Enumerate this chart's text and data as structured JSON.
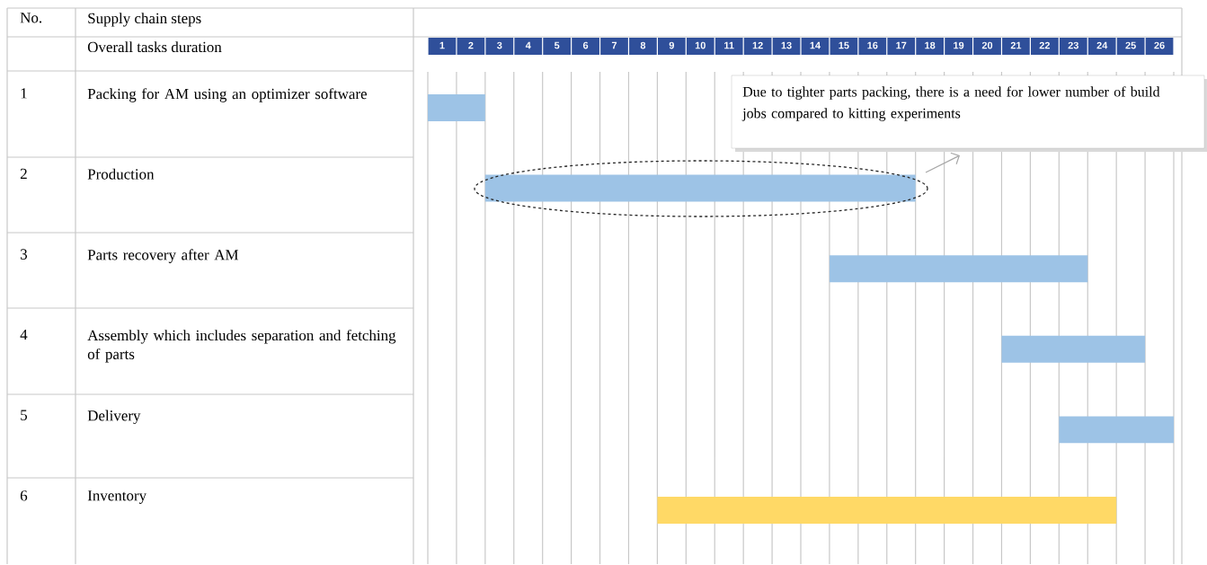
{
  "chart_data": {
    "type": "bar",
    "orientation": "horizontal",
    "categories": [
      "Packing for AM using an optimizer software",
      "Production",
      "Parts recovery after AM",
      "Assembly which includes separation and fetching of parts",
      "Delivery",
      "Inventory"
    ],
    "base": [
      0,
      2,
      14,
      20,
      22,
      8
    ],
    "values": [
      2,
      15,
      9,
      5,
      4,
      16
    ],
    "colors": [
      "#9dc3e6",
      "#9dc3e6",
      "#9dc3e6",
      "#9dc3e6",
      "#9dc3e6",
      "#ffd966"
    ],
    "xlim": [
      0,
      26
    ],
    "xticks": [
      {
        "value": 0,
        "label": null
      },
      {
        "value": 0.5,
        "label": "1"
      },
      {
        "value": 1,
        "label": null
      },
      {
        "value": 1.5,
        "label": "2"
      },
      {
        "value": 2,
        "label": null
      },
      {
        "value": 2.5,
        "label": "3"
      },
      {
        "value": 3,
        "label": null
      },
      {
        "value": 3.5,
        "label": "4"
      },
      {
        "value": 4,
        "label": null
      },
      {
        "value": 4.5,
        "label": "5"
      },
      {
        "value": 5,
        "label": null
      },
      {
        "value": 5.5,
        "label": "6"
      },
      {
        "value": 6,
        "label": null
      },
      {
        "value": 6.5,
        "label": "7"
      },
      {
        "value": 7,
        "label": null
      },
      {
        "value": 7.5,
        "label": "8"
      },
      {
        "value": 8,
        "label": null
      },
      {
        "value": 8.5,
        "label": "9"
      },
      {
        "value": 9,
        "label": null
      },
      {
        "value": 9.5,
        "label": "10"
      },
      {
        "value": 10,
        "label": null
      },
      {
        "value": 10.5,
        "label": "11"
      },
      {
        "value": 11,
        "label": null
      },
      {
        "value": 11.5,
        "label": "12"
      },
      {
        "value": 12,
        "label": null
      },
      {
        "value": 12.5,
        "label": "13"
      },
      {
        "value": 13,
        "label": null
      },
      {
        "value": 13.5,
        "label": "14"
      },
      {
        "value": 14,
        "label": null
      },
      {
        "value": 14.5,
        "label": "15"
      },
      {
        "value": 15,
        "label": null
      },
      {
        "value": 15.5,
        "label": "16"
      },
      {
        "value": 16,
        "label": null
      },
      {
        "value": 16.5,
        "label": "17"
      },
      {
        "value": 17,
        "label": null
      },
      {
        "value": 17.5,
        "label": "18"
      },
      {
        "value": 18,
        "label": null
      },
      {
        "value": 18.5,
        "label": "19"
      },
      {
        "value": 19,
        "label": null
      },
      {
        "value": 19.5,
        "label": "20"
      },
      {
        "value": 20,
        "label": null
      },
      {
        "value": 20.5,
        "label": "21"
      },
      {
        "value": 21,
        "label": null
      },
      {
        "value": 21.5,
        "label": "22"
      },
      {
        "value": 22,
        "label": null
      },
      {
        "value": 22.5,
        "label": "23"
      },
      {
        "value": 23,
        "label": null
      },
      {
        "value": 23.5,
        "label": "24"
      },
      {
        "value": 24,
        "label": null
      },
      {
        "value": 24.5,
        "label": "25"
      },
      {
        "value": 25,
        "label": null
      },
      {
        "value": 25.5,
        "label": "26"
      },
      {
        "value": 26,
        "label": null
      }
    ],
    "grid": "x",
    "annotations": [
      "No.",
      "Supply chain steps",
      "Overall tasks duration",
      "1",
      "2",
      "3",
      "4",
      "5",
      "6",
      "Due to tighter parts packing, there is a need for lower number of build jobs compared to kitting experiments"
    ]
  }
}
